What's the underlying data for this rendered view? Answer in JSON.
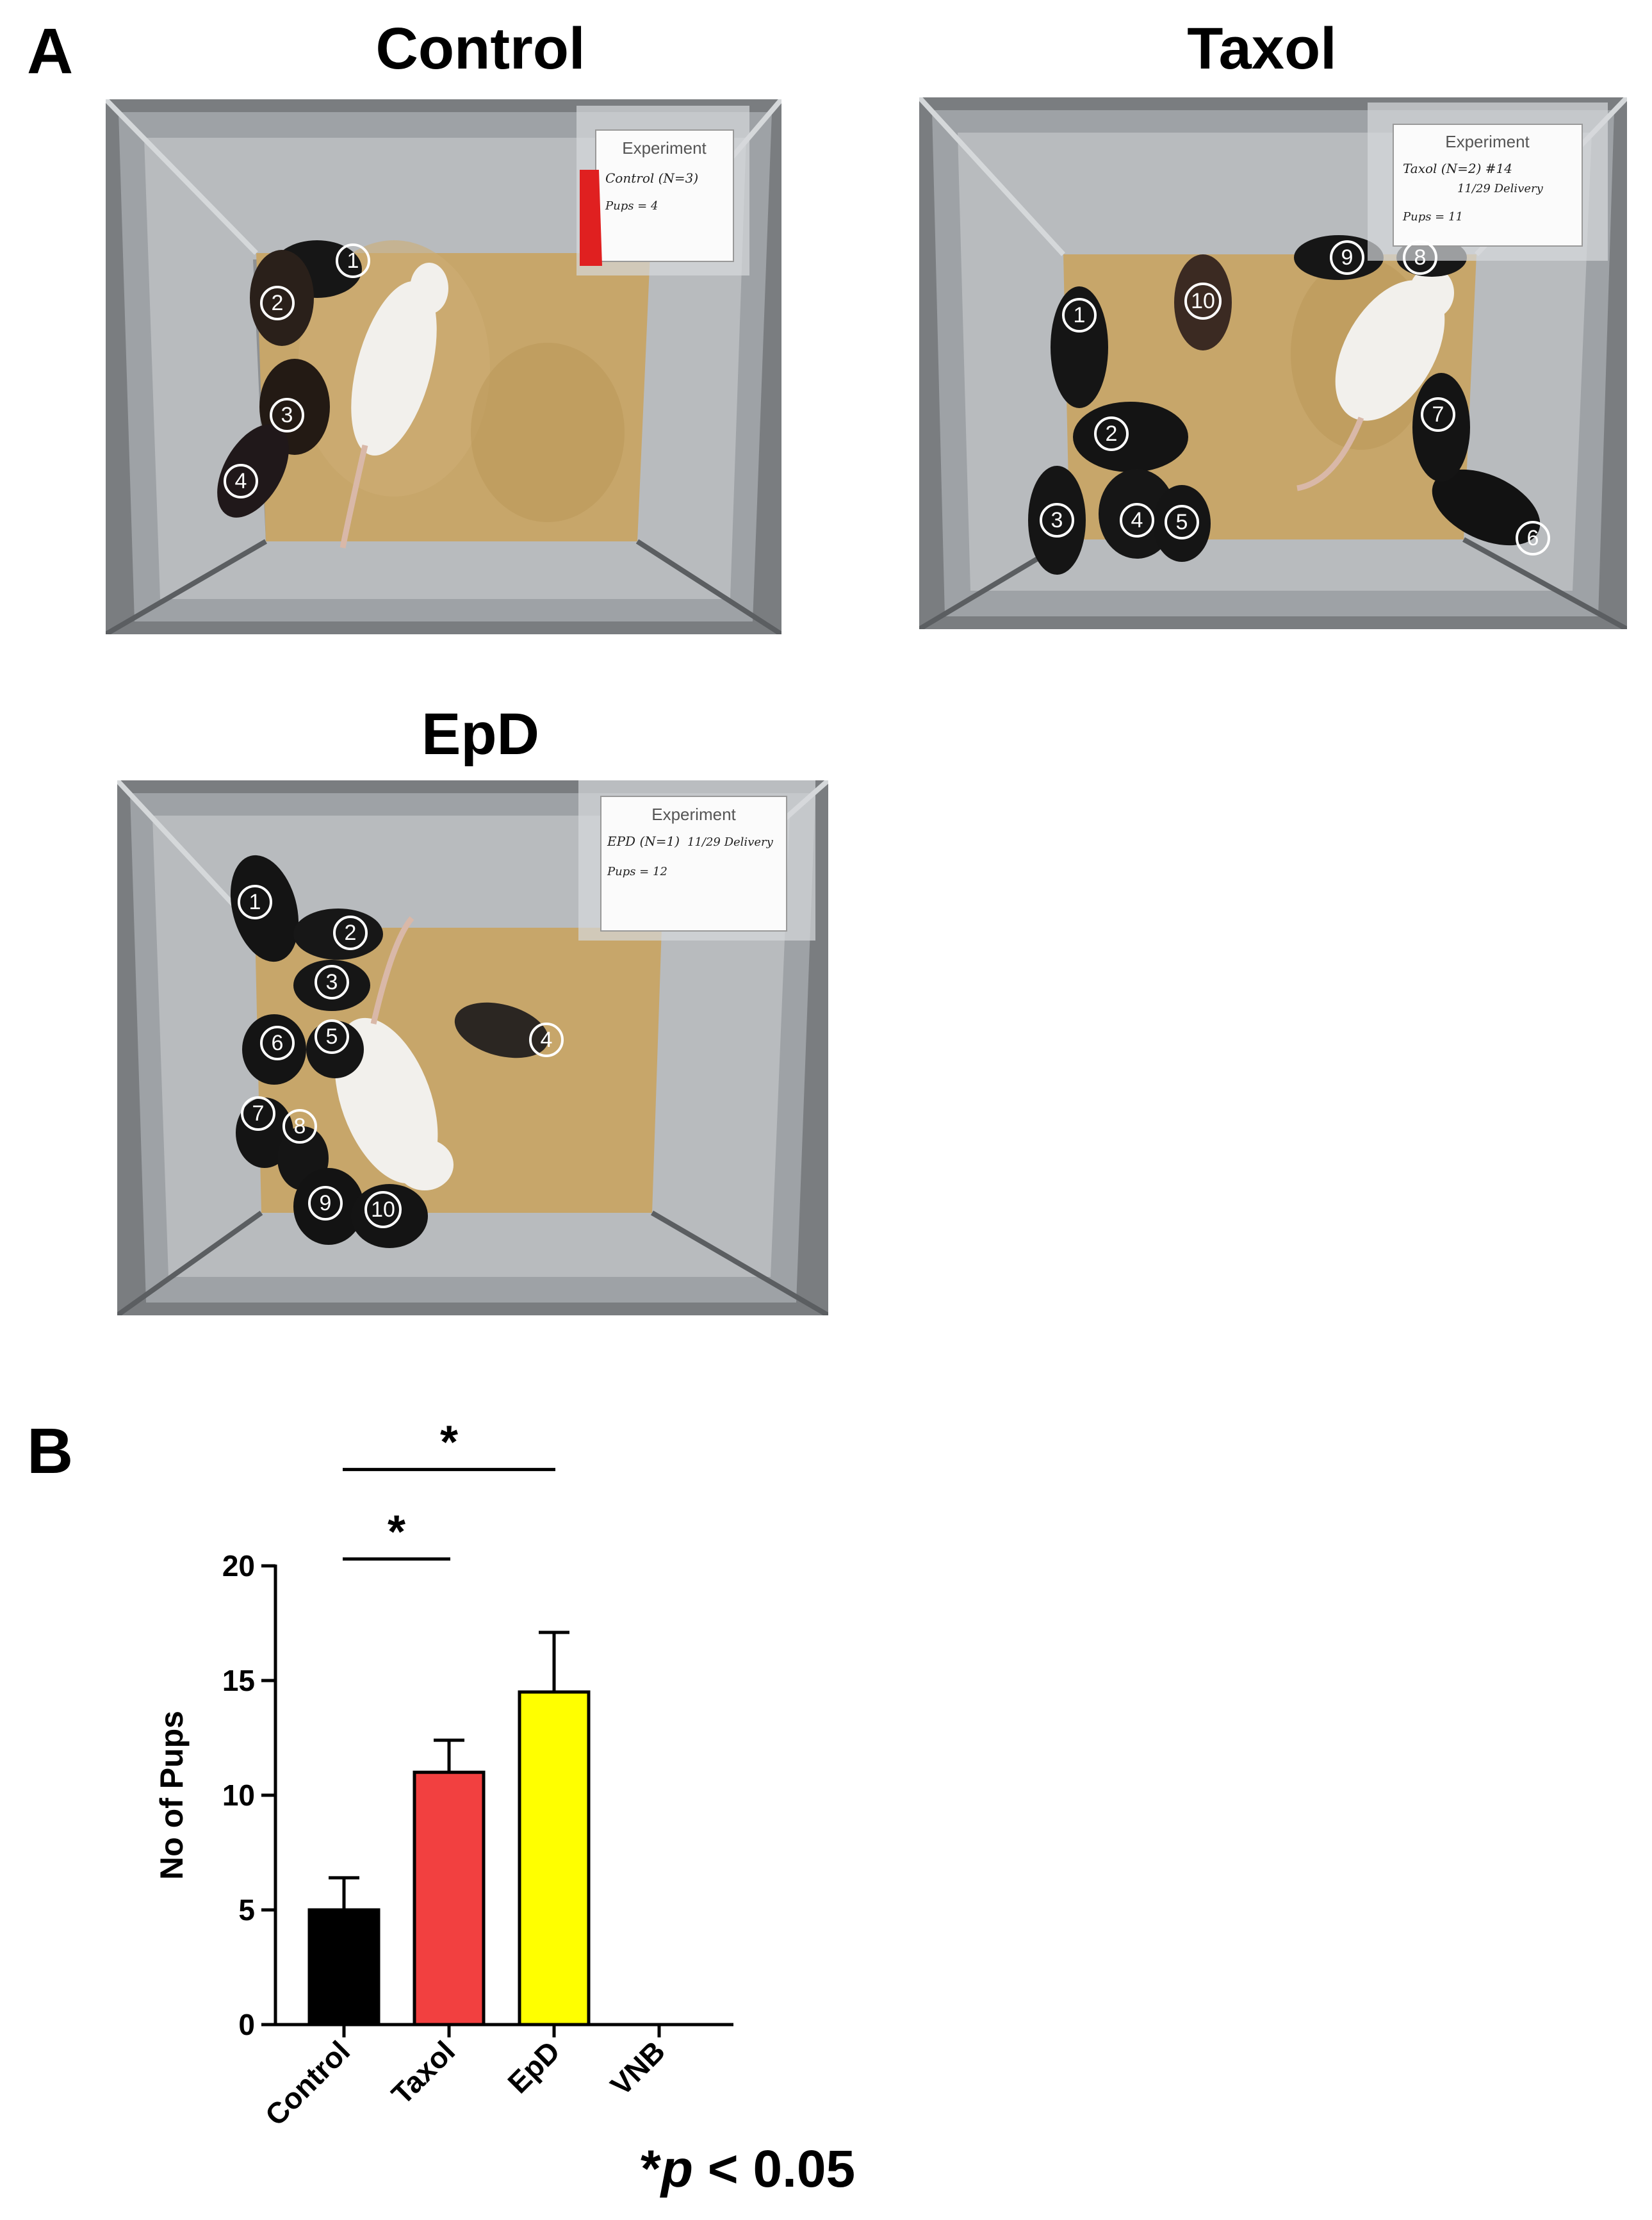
{
  "panel_a": {
    "letter": "A",
    "photos": [
      {
        "title": "Control",
        "card": {
          "header": "Experiment",
          "line1": "Control (N=3)",
          "line2": "Pups = 4"
        },
        "labels": [
          "1",
          "2",
          "3",
          "4"
        ]
      },
      {
        "title": "Taxol",
        "card": {
          "header": "Experiment",
          "line1": "Taxol (N=2) #14",
          "line1b": "11/29 Delivery",
          "line2": "Pups = 11"
        },
        "labels": [
          "1",
          "2",
          "3",
          "4",
          "5",
          "6",
          "7",
          "8",
          "9",
          "10"
        ]
      },
      {
        "title": "EpD",
        "card": {
          "header": "Experiment",
          "line1": "EPD (N=1)",
          "line1b": "11/29 Delivery",
          "line2": "Pups = 12"
        },
        "labels": [
          "1",
          "2",
          "3",
          "4",
          "5",
          "6",
          "7",
          "8",
          "9",
          "10"
        ]
      }
    ]
  },
  "panel_b": {
    "letter": "B",
    "p_value_note": {
      "star": "*",
      "p": "p",
      "rest": " < 0.05"
    }
  },
  "chart_data": {
    "type": "bar",
    "categories": [
      "Control",
      "Taxol",
      "EpD",
      "VNB"
    ],
    "values": [
      5,
      11,
      14.5,
      0
    ],
    "errors": [
      1.4,
      1.4,
      2.6,
      0
    ],
    "colors": [
      "#000000",
      "#f24040",
      "#ffff00",
      "#ffffff"
    ],
    "ylabel": "No of Pups",
    "xlabel": "",
    "ylim": [
      0,
      20
    ],
    "yticks": [
      0,
      5,
      10,
      15,
      20
    ],
    "significance": [
      {
        "from": "Control",
        "to": "Taxol",
        "label": "*"
      },
      {
        "from": "Control",
        "to": "EpD",
        "label": "*"
      }
    ],
    "grid": false
  }
}
